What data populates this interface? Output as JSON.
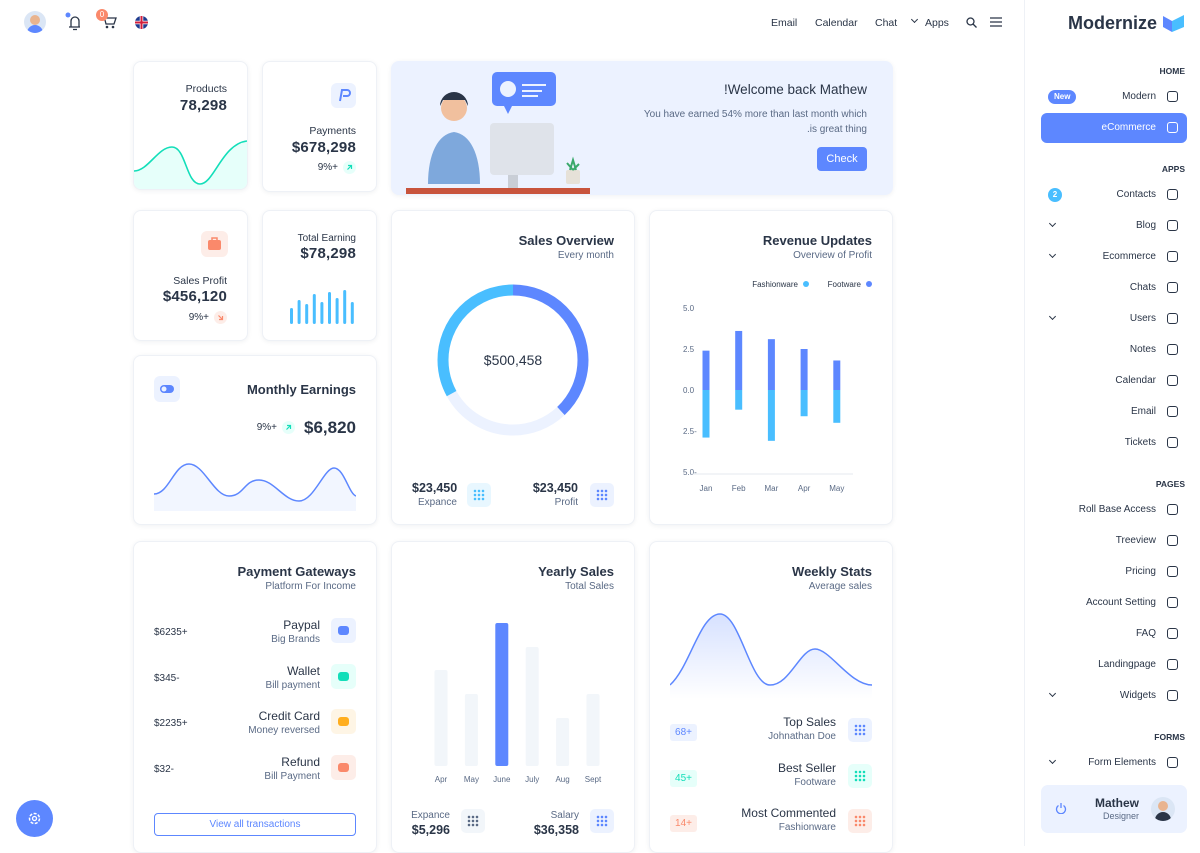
{
  "topbar": {
    "cart_badge": "0",
    "nav": [
      "Email",
      "Calendar",
      "Chat",
      "Apps"
    ]
  },
  "sidebar": {
    "brand": "Modernize",
    "sections": [
      {
        "title": "HOME",
        "items": [
          {
            "label": "Modern",
            "badge": "New"
          },
          {
            "label": "eCommerce",
            "active": true
          }
        ]
      },
      {
        "title": "APPS",
        "items": [
          {
            "label": "Contacts",
            "badge": "2"
          },
          {
            "label": "Blog",
            "expandable": true
          },
          {
            "label": "Ecommerce",
            "expandable": true
          },
          {
            "label": "Chats"
          },
          {
            "label": "Users",
            "expandable": true
          },
          {
            "label": "Notes"
          },
          {
            "label": "Calendar"
          },
          {
            "label": "Email"
          },
          {
            "label": "Tickets"
          }
        ]
      },
      {
        "title": "PAGES",
        "items": [
          {
            "label": "Roll Base Access"
          },
          {
            "label": "Treeview"
          },
          {
            "label": "Pricing"
          },
          {
            "label": "Account Setting"
          },
          {
            "label": "FAQ"
          },
          {
            "label": "Landingpage"
          },
          {
            "label": "Widgets",
            "expandable": true
          }
        ]
      },
      {
        "title": "FORMS",
        "items": [
          {
            "label": "Form Elements",
            "expandable": true
          }
        ]
      }
    ],
    "profile": {
      "name": "Mathew",
      "role": "Designer"
    }
  },
  "products": {
    "label": "Products",
    "value": "78,298"
  },
  "payments": {
    "label": "Payments",
    "value": "$678,298",
    "change": "9%+"
  },
  "welcome": {
    "title": "!Welcome back Mathew",
    "text": [
      "You have earned 54% more than last month which",
      ".is great thing"
    ],
    "button": "Check"
  },
  "sales_profit": {
    "label": "Sales Profit",
    "value": "$456,120",
    "change": "9%+"
  },
  "total_earning": {
    "label": "Total Earning",
    "value": "$78,298",
    "chart_data": {
      "type": "bar",
      "values": [
        16,
        24,
        20,
        30,
        22,
        32,
        26,
        34,
        22
      ],
      "color": "#49beff"
    }
  },
  "monthly_earnings": {
    "title": "Monthly Earnings",
    "change": "9%+",
    "value": "$6,820"
  },
  "sales_overview": {
    "title": "Sales Overview",
    "subtitle": "Every month",
    "total": "$500,458",
    "chart_data": {
      "type": "donut",
      "values": [
        38,
        29,
        33
      ],
      "colors": [
        "#5d87ff",
        "#ecf2ff",
        "#49beff"
      ]
    },
    "stats": [
      {
        "value": "$23,450",
        "label": "Expance"
      },
      {
        "value": "$23,450",
        "label": "Profit"
      }
    ]
  },
  "revenue_updates": {
    "title": "Revenue Updates",
    "subtitle": "Overview of Profit",
    "chart_data": {
      "type": "bar",
      "categories": [
        "Jan",
        "Feb",
        "Mar",
        "Apr",
        "May"
      ],
      "series": [
        {
          "name": "Fashionware",
          "color": "#49beff",
          "values": [
            -2.9,
            -1.2,
            -3.1,
            -1.6,
            -2.0
          ]
        },
        {
          "name": "Footware",
          "color": "#5d87ff",
          "values": [
            2.4,
            3.6,
            3.1,
            2.5,
            1.8
          ]
        }
      ],
      "ylim": [
        -5,
        5
      ],
      "yticks": [
        {
          "value": -5,
          "label": "5.0-"
        },
        {
          "value": -2.5,
          "label": "2.5-"
        },
        {
          "value": 0,
          "label": "0.0"
        },
        2.5,
        {
          "value": 5,
          "label": "5.0"
        }
      ]
    }
  },
  "payment_gateways": {
    "title": "Payment Gateways",
    "subtitle": "Platform For Income",
    "items": [
      {
        "name": "Paypal",
        "desc": "Big Brands",
        "amount": "$6235+"
      },
      {
        "name": "Wallet",
        "desc": "Bill payment",
        "amount": "$345-"
      },
      {
        "name": "Credit Card",
        "desc": "Money reversed",
        "amount": "$2235+"
      },
      {
        "name": "Refund",
        "desc": "Bill Payment",
        "amount": "$32-"
      }
    ],
    "button": "View all transactions"
  },
  "yearly_sales": {
    "title": "Yearly Sales",
    "subtitle": "Total Sales",
    "chart_data": {
      "type": "bar",
      "categories": [
        "Apr",
        "May",
        "June",
        "July",
        "Aug",
        "Sept"
      ],
      "values": [
        96,
        72,
        143,
        119,
        48,
        72
      ],
      "colors": [
        "#f2f6fa",
        "#f2f6fa",
        "#5d87ff",
        "#f2f6fa",
        "#f2f6fa",
        "#f2f6fa"
      ]
    },
    "stats": [
      {
        "label": "Expance",
        "value": "$5,296"
      },
      {
        "label": "Salary",
        "value": "$36,358"
      }
    ]
  },
  "weekly_stats": {
    "title": "Weekly Stats",
    "subtitle": "Average sales",
    "items": [
      {
        "badge": "68+",
        "title": "Top Sales",
        "subtitle": "Johnathan Doe"
      },
      {
        "badge": "45+",
        "title": "Best Seller",
        "subtitle": "Footware"
      },
      {
        "badge": "14+",
        "title": "Most Commented",
        "subtitle": "Fashionware"
      }
    ]
  }
}
